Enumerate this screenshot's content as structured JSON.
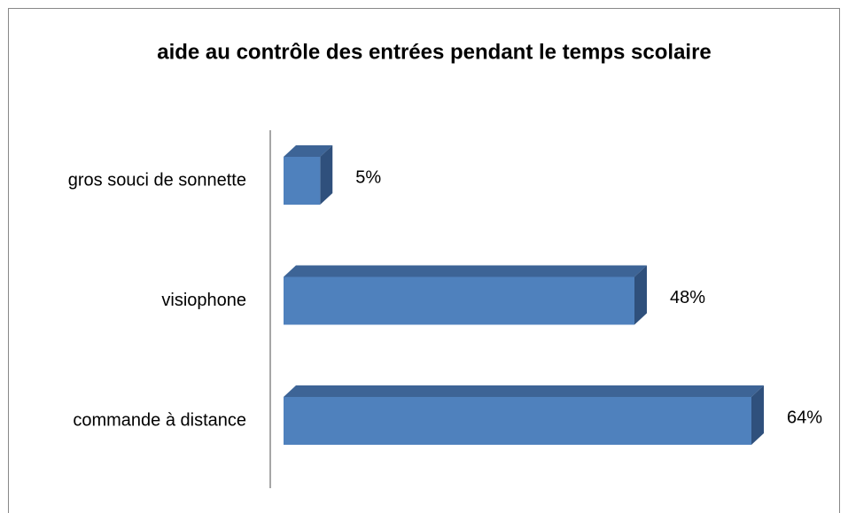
{
  "chart_data": {
    "type": "bar3d",
    "title": "aide au contrôle des entrées pendant le temps scolaire",
    "categories": [
      "gros souci de sonnette",
      "visiophone",
      "commande à distance"
    ],
    "values": [
      5,
      48,
      64
    ],
    "value_labels": [
      "5%",
      "48%",
      "64%"
    ],
    "color": "#4f81bd",
    "top_color": "#3d6496",
    "side_color": "#2f507c"
  }
}
